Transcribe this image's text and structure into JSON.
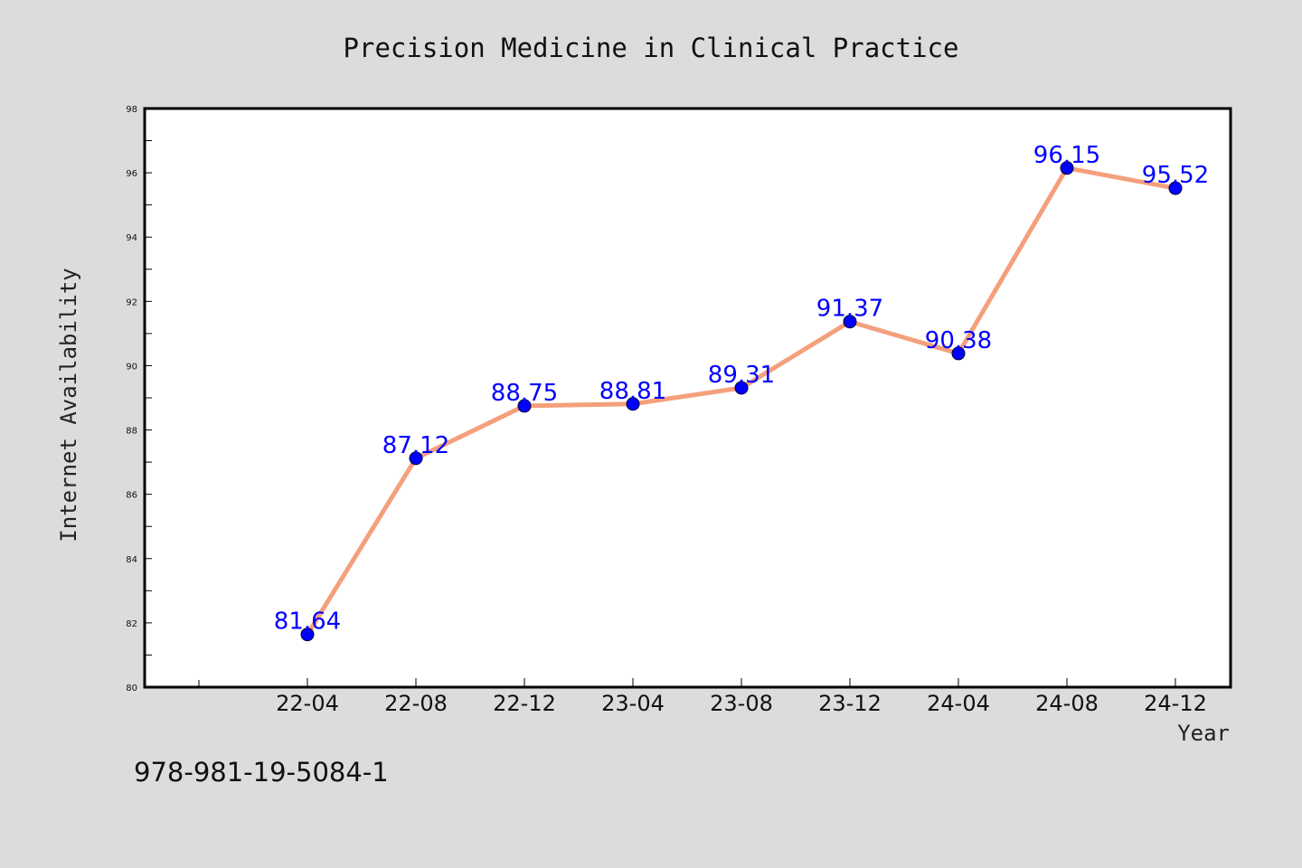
{
  "chart_data": {
    "type": "line",
    "title": "Precision Medicine in Clinical Practice",
    "xlabel": "Year",
    "ylabel": "Internet Availability",
    "categories": [
      "22-04",
      "22-08",
      "22-12",
      "23-04",
      "23-08",
      "23-12",
      "24-04",
      "24-08",
      "24-12"
    ],
    "values": [
      81.64,
      87.12,
      88.75,
      88.81,
      89.31,
      91.37,
      90.38,
      96.15,
      95.52
    ],
    "data_labels": [
      "81.64",
      "87.12",
      "88.75",
      "88.81",
      "89.31",
      "91.37",
      "90.38",
      "96.15",
      "95.52"
    ],
    "ylim": [
      80,
      98
    ],
    "yticks": [
      "80",
      "82",
      "84",
      "86",
      "88",
      "90",
      "92",
      "94",
      "96",
      "98"
    ],
    "grid": false,
    "legend": "none"
  },
  "footer": {
    "isbn": "978-981-19-5084-1"
  },
  "colors": {
    "background": "#dcdcdc",
    "plot_background": "#ffffff",
    "line": "#f4a07c",
    "marker": "#0000ff",
    "data_label": "#0000ff"
  }
}
